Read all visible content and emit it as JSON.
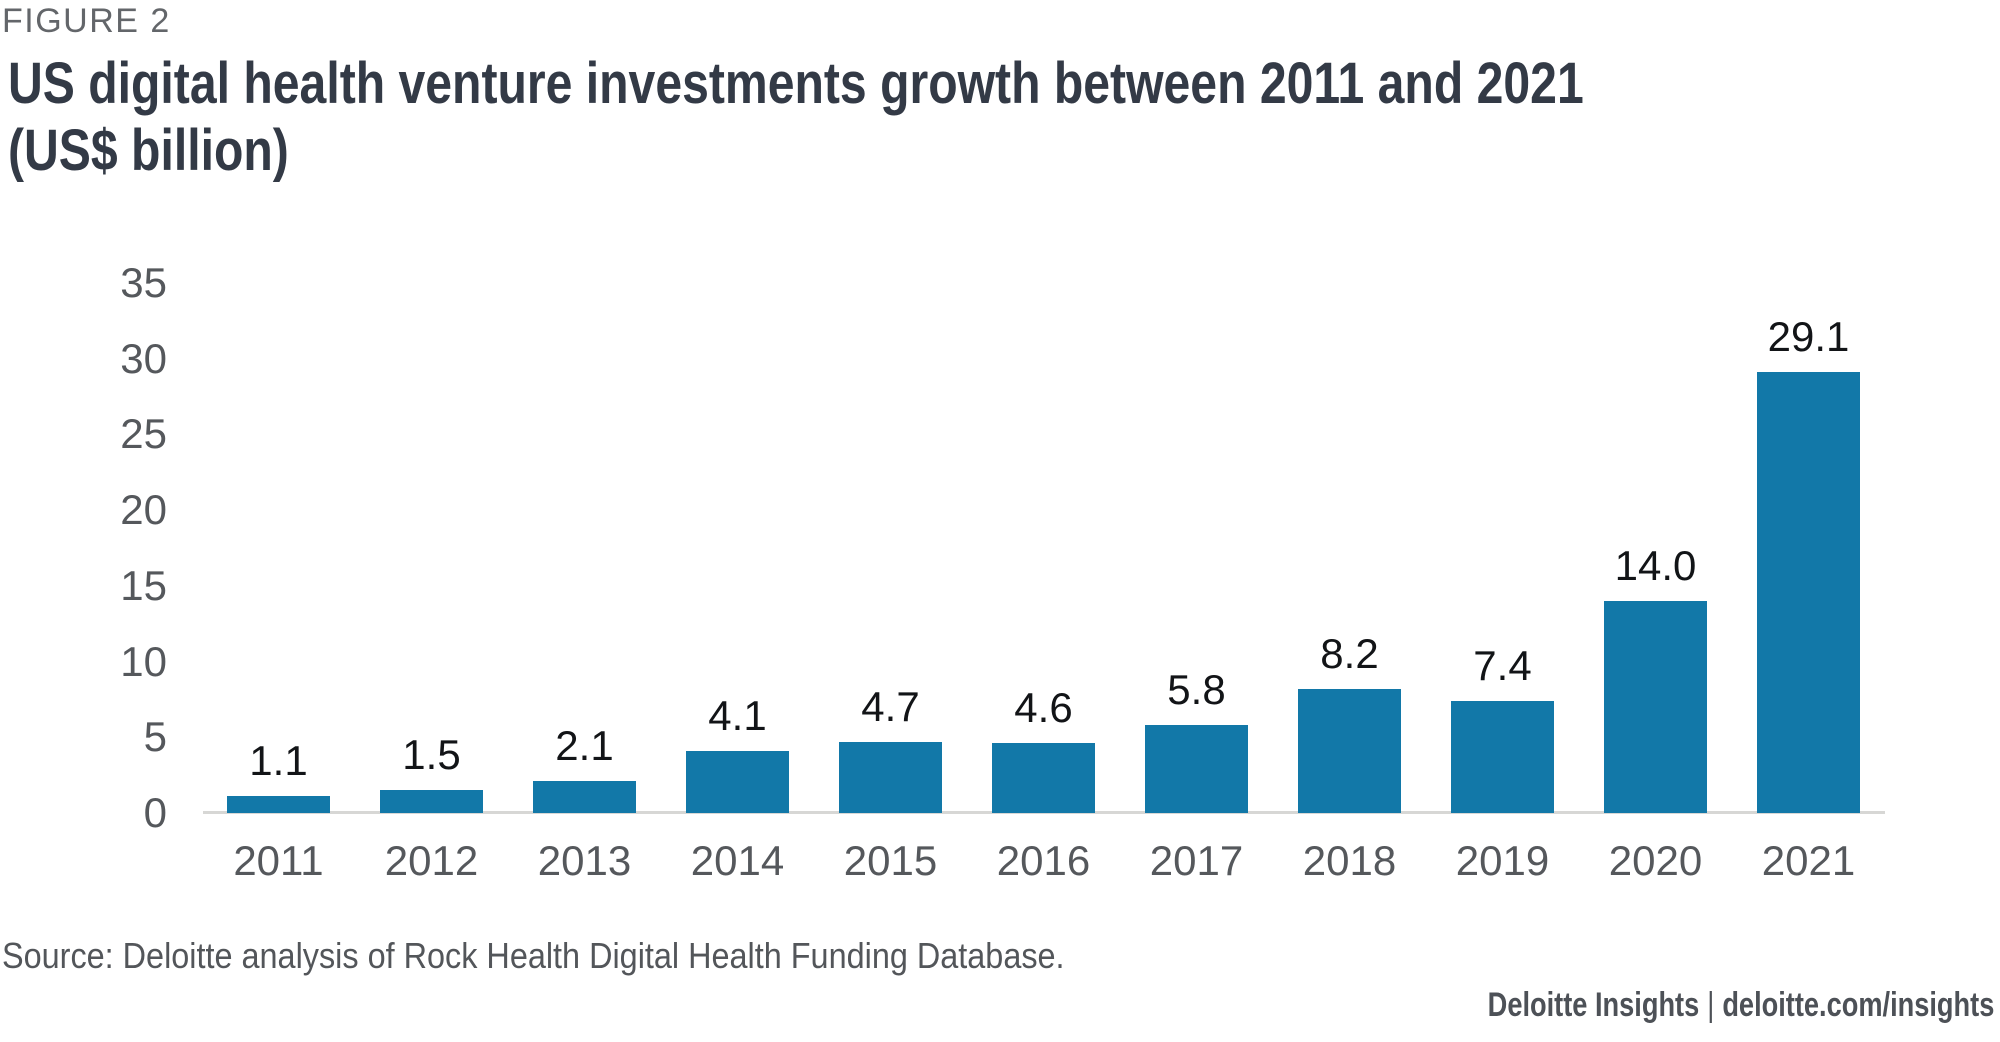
{
  "figure_label": "FIGURE 2",
  "title_line1": "US digital health venture investments growth between 2011 and 2021",
  "title_line2": "(US$ billion)",
  "source": "Source: Deloitte analysis of Rock Health Digital Health Funding Database.",
  "footer": {
    "brand": "Deloitte Insights",
    "separator": "|",
    "url": "deloitte.com/insights"
  },
  "colors": {
    "bar": "#1278A8",
    "title": "#333A46",
    "figure_label": "#63666A",
    "axis_text": "#55585C",
    "value_label": "#121417",
    "axis_line": "#D7D7D5",
    "source_text": "#53565A",
    "footer_text": "#4D5157"
  },
  "chart_data": {
    "type": "bar",
    "title": "US digital health venture investments growth between 2011 and 2021 (US$ billion)",
    "categories": [
      "2011",
      "2012",
      "2013",
      "2014",
      "2015",
      "2016",
      "2017",
      "2018",
      "2019",
      "2020",
      "2021"
    ],
    "values": [
      1.1,
      1.5,
      2.1,
      4.1,
      4.7,
      4.6,
      5.8,
      8.2,
      7.4,
      14.0,
      29.1
    ],
    "value_labels": [
      "1.1",
      "1.5",
      "2.1",
      "4.1",
      "4.7",
      "4.6",
      "5.8",
      "8.2",
      "7.4",
      "14.0",
      "29.1"
    ],
    "xlabel": "",
    "ylabel": "",
    "ylim": [
      0,
      35
    ],
    "y_ticks": [
      0,
      5,
      10,
      15,
      20,
      25,
      30,
      35
    ],
    "grid": false,
    "legend": "none",
    "bar_color": "#1278A8",
    "value_label_position": "above-bar"
  }
}
